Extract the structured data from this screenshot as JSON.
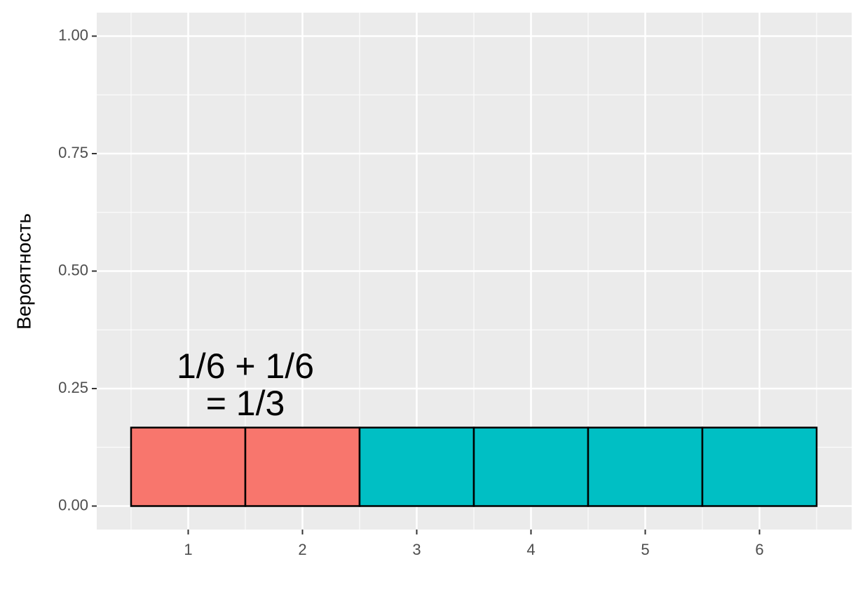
{
  "chart_data": {
    "type": "bar",
    "ylabel": "Вероятность",
    "annotation": [
      "1/6 + 1/6",
      "= 1/3"
    ],
    "categories": [
      "1",
      "2",
      "3",
      "4",
      "5",
      "6"
    ],
    "values": [
      0.167,
      0.167,
      0.167,
      0.167,
      0.167,
      0.167
    ],
    "colors": [
      "#F8766D",
      "#F8766D",
      "#00BFC4",
      "#00BFC4",
      "#00BFC4",
      "#00BFC4"
    ],
    "ylim": [
      -0.05,
      1.05
    ],
    "yticks": [
      {
        "value": 0,
        "label": "0.00"
      },
      {
        "value": 0.25,
        "label": "0.25"
      },
      {
        "value": 0.5,
        "label": "0.50"
      },
      {
        "value": 0.75,
        "label": "0.75"
      },
      {
        "value": 1,
        "label": "1.00"
      }
    ],
    "grid": true
  }
}
